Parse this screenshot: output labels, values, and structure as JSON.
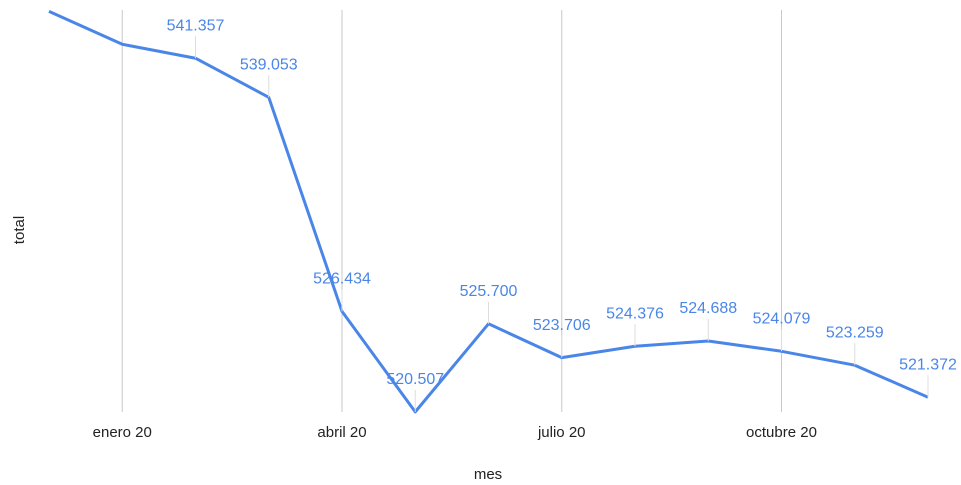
{
  "chart_data": {
    "type": "line",
    "x_label": "mes",
    "y_label": "total",
    "categories": [
      null,
      "enero 20",
      null,
      null,
      "abril 20",
      null,
      null,
      "julio 20",
      null,
      null,
      "octubre 20",
      null,
      null
    ],
    "series": [
      {
        "name": "total",
        "color": "#4a86e8",
        "values": [
          544120,
          542180,
          541357,
          539053,
          526434,
          520507,
          525700,
          523706,
          524376,
          524688,
          524079,
          523259,
          521372
        ],
        "value_labels": [
          null,
          null,
          "541.357",
          "539.053",
          "526.434",
          "520.507",
          "525.700",
          "523.706",
          "524.376",
          "524.688",
          "524.079",
          "523.259",
          "521.372"
        ]
      }
    ],
    "ylim": [
      520500,
      544200
    ],
    "grid": true
  }
}
